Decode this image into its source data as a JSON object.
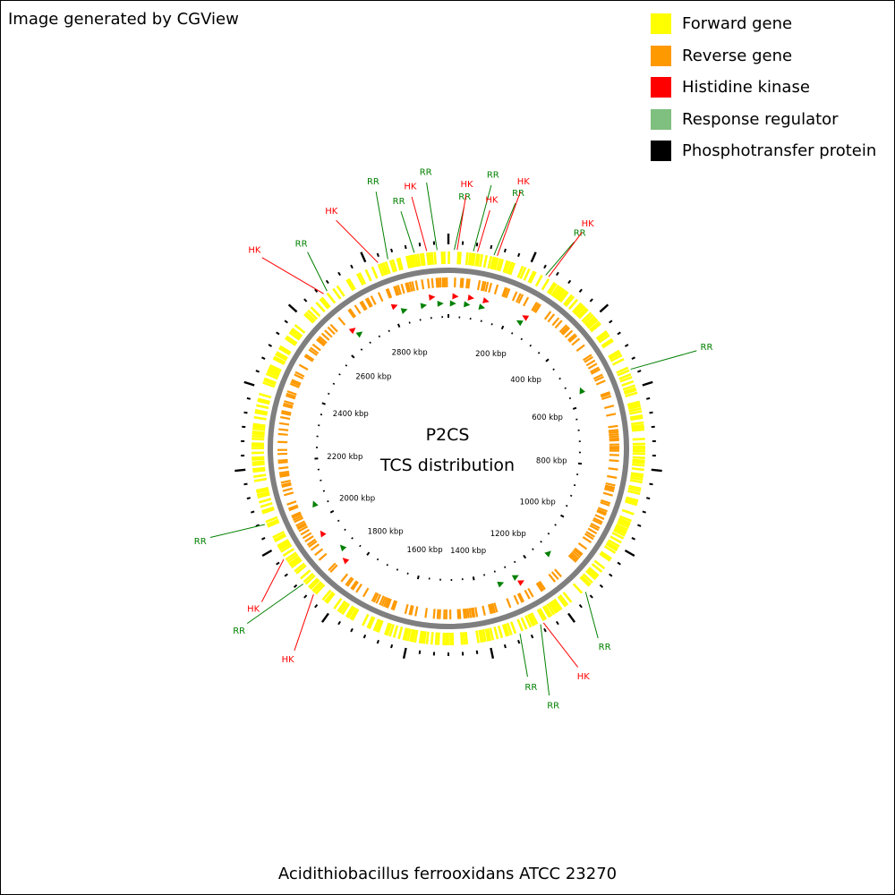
{
  "credit": "Image generated by CGView",
  "footer": "Acidithiobacillus ferrooxidans ATCC 23270",
  "center": {
    "line1": "P2CS",
    "line2": "TCS distribution"
  },
  "genome_kbp": 2982,
  "colors": {
    "forward": "#ffff00",
    "reverse": "#ff9900",
    "hk": "#ff0000",
    "rr": "#008000",
    "rr_legend": "#7fbf7f",
    "phosphotransfer": "#000000",
    "backbone": "#7f7f7f"
  },
  "legend": [
    {
      "label": "Forward gene",
      "color": "#ffff00"
    },
    {
      "label": "Reverse gene",
      "color": "#ff9900"
    },
    {
      "label": "Histidine kinase",
      "color": "#ff0000"
    },
    {
      "label": "Response regulator",
      "color": "#7fbf7f"
    },
    {
      "label": "Phosphotransfer protein",
      "color": "#000000"
    }
  ],
  "tick_labels": [
    "200 kbp",
    "400 kbp",
    "600 kbp",
    "800 kbp",
    "1000 kbp",
    "1200 kbp",
    "1400 kbp",
    "1600 kbp",
    "1800 kbp",
    "2000 kbp",
    "2200 kbp",
    "2400 kbp",
    "2600 kbp",
    "2800 kbp"
  ],
  "features": [
    {
      "type": "RR",
      "label": "RR",
      "kbp": 14,
      "strand": "forward"
    },
    {
      "type": "HK",
      "label": "HK",
      "kbp": 21,
      "strand": "forward"
    },
    {
      "type": "RR",
      "label": "RR",
      "kbp": 60,
      "strand": "forward"
    },
    {
      "type": "HK",
      "label": "HK",
      "kbp": 70,
      "strand": "forward"
    },
    {
      "type": "RR",
      "label": "RR",
      "kbp": 110,
      "strand": "forward"
    },
    {
      "type": "HK",
      "label": "HK",
      "kbp": 118,
      "strand": "forward"
    },
    {
      "type": "RR",
      "label": "RR",
      "kbp": 243,
      "strand": "reverse"
    },
    {
      "type": "HK",
      "label": "HK",
      "kbp": 251,
      "strand": "reverse"
    },
    {
      "type": "RR",
      "label": "RR",
      "kbp": 551,
      "strand": "reverse"
    },
    {
      "type": "RR",
      "label": "RR",
      "kbp": 1129,
      "strand": "reverse"
    },
    {
      "type": "HK",
      "label": "HK",
      "kbp": 1254,
      "strand": "reverse"
    },
    {
      "type": "RR",
      "label": "RR",
      "kbp": 1262,
      "strand": "reverse"
    },
    {
      "type": "RR",
      "label": "RR",
      "kbp": 1316,
      "strand": "reverse"
    },
    {
      "type": "HK",
      "label": "HK",
      "kbp": 1845,
      "strand": "forward"
    },
    {
      "type": "RR",
      "label": "RR",
      "kbp": 1880,
      "strand": "forward"
    },
    {
      "type": "HK",
      "label": "HK",
      "kbp": 1955,
      "strand": "forward"
    },
    {
      "type": "RR",
      "label": "RR",
      "kbp": 2050,
      "strand": "forward"
    },
    {
      "type": "HK",
      "label": "HK",
      "kbp": 2660,
      "strand": "forward"
    },
    {
      "type": "RR",
      "label": "RR",
      "kbp": 2670,
      "strand": "forward"
    },
    {
      "type": "HK",
      "label": "HK",
      "kbp": 2810,
      "strand": "forward"
    },
    {
      "type": "RR",
      "label": "RR",
      "kbp": 2835,
      "strand": "forward"
    },
    {
      "type": "RR",
      "label": "RR",
      "kbp": 2900,
      "strand": "forward"
    },
    {
      "type": "HK",
      "label": "HK",
      "kbp": 2930,
      "strand": "forward"
    },
    {
      "type": "RR",
      "label": "RR",
      "kbp": 2955,
      "strand": "forward"
    }
  ]
}
